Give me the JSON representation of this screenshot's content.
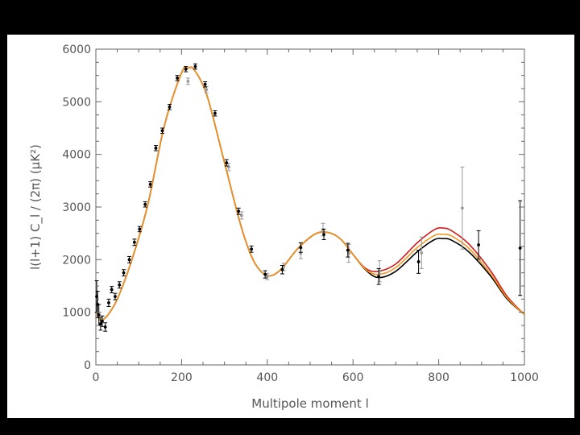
{
  "chart_data": {
    "type": "scatter",
    "xlabel": "Multipole moment l",
    "ylabel": "l(l+1) C_l / (2π) (μK²)",
    "xlim": [
      0,
      1000
    ],
    "ylim": [
      0,
      6000
    ],
    "xticks": [
      0,
      200,
      400,
      600,
      800,
      1000
    ],
    "yticks": [
      0,
      1000,
      2000,
      3000,
      4000,
      5000,
      6000
    ],
    "xtick_labels": [
      "0",
      "200",
      "400",
      "600",
      "800",
      "1000"
    ],
    "ytick_labels": [
      "0",
      "1000",
      "2000",
      "3000",
      "4000",
      "5000",
      "6000"
    ],
    "grid": false,
    "colors": {
      "axis": "#666666",
      "black": "#000000",
      "red": "#d41a1a",
      "orange": "#f0961e",
      "gray": "#999999"
    },
    "curves": [
      {
        "color": "#000000",
        "x": [
          2,
          10,
          20,
          30,
          50,
          80,
          120,
          160,
          200,
          215,
          230,
          260,
          300,
          340,
          370,
          400,
          430,
          470,
          510,
          540,
          570,
          600,
          630,
          660,
          700,
          750,
          790,
          810,
          830,
          870,
          920,
          960,
          1000
        ],
        "y": [
          1000,
          850,
          880,
          970,
          1250,
          1900,
          3000,
          4550,
          5550,
          5640,
          5600,
          5100,
          3850,
          2600,
          1950,
          1700,
          1800,
          2200,
          2480,
          2520,
          2400,
          2100,
          1800,
          1660,
          1780,
          2150,
          2380,
          2400,
          2370,
          2150,
          1700,
          1250,
          960
        ]
      },
      {
        "color": "#d41a1a",
        "x": [
          2,
          10,
          20,
          30,
          50,
          80,
          120,
          160,
          200,
          215,
          230,
          260,
          300,
          340,
          370,
          400,
          430,
          470,
          510,
          540,
          570,
          600,
          630,
          660,
          700,
          750,
          790,
          810,
          830,
          870,
          920,
          960,
          1000
        ],
        "y": [
          1000,
          850,
          880,
          970,
          1250,
          1900,
          3000,
          4550,
          5550,
          5640,
          5600,
          5100,
          3850,
          2600,
          1950,
          1700,
          1800,
          2200,
          2480,
          2520,
          2400,
          2100,
          1830,
          1780,
          1920,
          2320,
          2570,
          2600,
          2550,
          2300,
          1800,
          1300,
          960
        ]
      },
      {
        "color": "#f0961e",
        "x": [
          2,
          10,
          20,
          30,
          50,
          80,
          120,
          160,
          200,
          215,
          230,
          260,
          300,
          340,
          370,
          400,
          430,
          470,
          510,
          540,
          570,
          600,
          630,
          660,
          700,
          750,
          790,
          810,
          830,
          870,
          920,
          960,
          1000
        ],
        "y": [
          1000,
          850,
          880,
          970,
          1250,
          1900,
          3000,
          4550,
          5550,
          5640,
          5600,
          5100,
          3850,
          2600,
          1950,
          1700,
          1800,
          2200,
          2480,
          2520,
          2400,
          2100,
          1810,
          1720,
          1850,
          2230,
          2460,
          2480,
          2450,
          2220,
          1740,
          1270,
          960
        ]
      }
    ],
    "points_black": [
      {
        "x": 2,
        "y": 1300,
        "err": 300
      },
      {
        "x": 4,
        "y": 1150,
        "err": 250
      },
      {
        "x": 7,
        "y": 950,
        "err": 200
      },
      {
        "x": 11,
        "y": 780,
        "err": 120
      },
      {
        "x": 15,
        "y": 830,
        "err": 100
      },
      {
        "x": 22,
        "y": 720,
        "err": 80
      },
      {
        "x": 30,
        "y": 1180,
        "err": 70
      },
      {
        "x": 37,
        "y": 1430,
        "err": 60
      },
      {
        "x": 45,
        "y": 1300,
        "err": 60
      },
      {
        "x": 55,
        "y": 1520,
        "err": 60
      },
      {
        "x": 65,
        "y": 1750,
        "err": 60
      },
      {
        "x": 78,
        "y": 2000,
        "err": 60
      },
      {
        "x": 90,
        "y": 2330,
        "err": 60
      },
      {
        "x": 102,
        "y": 2580,
        "err": 50
      },
      {
        "x": 115,
        "y": 3050,
        "err": 50
      },
      {
        "x": 127,
        "y": 3430,
        "err": 50
      },
      {
        "x": 140,
        "y": 4120,
        "err": 50
      },
      {
        "x": 155,
        "y": 4450,
        "err": 50
      },
      {
        "x": 172,
        "y": 4900,
        "err": 50
      },
      {
        "x": 190,
        "y": 5450,
        "err": 50
      },
      {
        "x": 210,
        "y": 5620,
        "err": 50
      },
      {
        "x": 232,
        "y": 5670,
        "err": 50
      },
      {
        "x": 255,
        "y": 5330,
        "err": 50
      },
      {
        "x": 278,
        "y": 4780,
        "err": 50
      },
      {
        "x": 305,
        "y": 3840,
        "err": 60
      },
      {
        "x": 333,
        "y": 2920,
        "err": 60
      },
      {
        "x": 363,
        "y": 2200,
        "err": 60
      },
      {
        "x": 395,
        "y": 1720,
        "err": 70
      },
      {
        "x": 435,
        "y": 1810,
        "err": 80
      },
      {
        "x": 478,
        "y": 2230,
        "err": 90
      },
      {
        "x": 532,
        "y": 2480,
        "err": 100
      },
      {
        "x": 588,
        "y": 2180,
        "err": 130
      },
      {
        "x": 660,
        "y": 1680,
        "err": 150
      },
      {
        "x": 753,
        "y": 1960,
        "err": 220
      },
      {
        "x": 893,
        "y": 2280,
        "err": 270
      },
      {
        "x": 990,
        "y": 2220,
        "err": 900
      }
    ],
    "points_gray": [
      {
        "x": 215,
        "y": 5390,
        "err": 60
      },
      {
        "x": 258,
        "y": 5230,
        "err": 60
      },
      {
        "x": 310,
        "y": 3760,
        "err": 70
      },
      {
        "x": 340,
        "y": 2840,
        "err": 70
      },
      {
        "x": 400,
        "y": 1680,
        "err": 60
      },
      {
        "x": 438,
        "y": 1860,
        "err": 70
      },
      {
        "x": 478,
        "y": 2120,
        "err": 100
      },
      {
        "x": 530,
        "y": 2570,
        "err": 120
      },
      {
        "x": 590,
        "y": 2120,
        "err": 170
      },
      {
        "x": 662,
        "y": 1780,
        "err": 200
      },
      {
        "x": 760,
        "y": 2130,
        "err": 300
      },
      {
        "x": 855,
        "y": 2980,
        "err": 780
      }
    ]
  }
}
